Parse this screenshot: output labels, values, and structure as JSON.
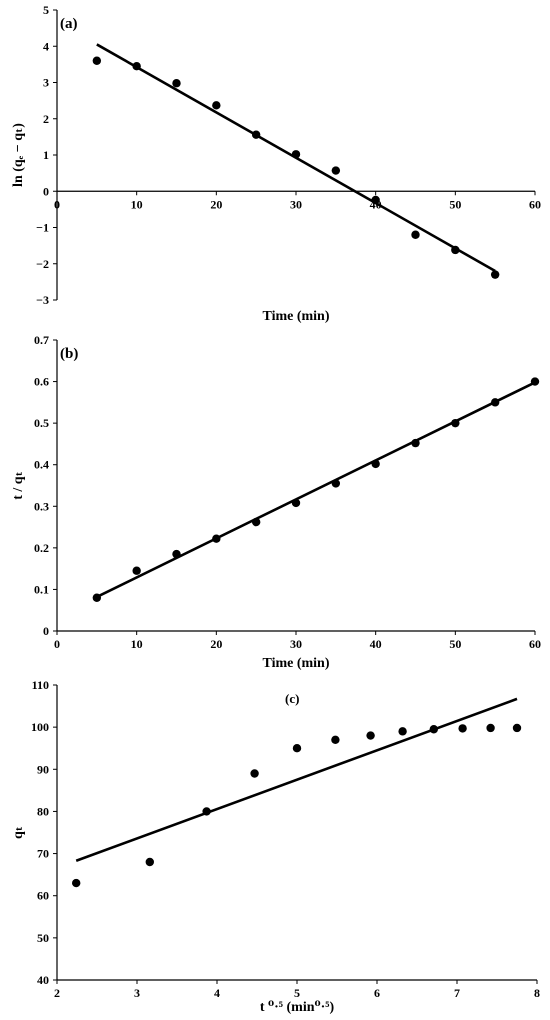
{
  "chart_data": [
    {
      "type": "scatter",
      "panel_label": "(a)",
      "xlabel": "Time  (min)",
      "ylabel": "ln (qₑ − qₜ)",
      "xlim": [
        0,
        60
      ],
      "ylim": [
        -3,
        5
      ],
      "xticks": [
        0,
        10,
        20,
        30,
        40,
        50,
        60
      ],
      "yticks": [
        -3,
        -2,
        -1,
        0,
        1,
        2,
        3,
        4,
        5
      ],
      "x_axis_at_zero": true,
      "grid": false,
      "series": [
        {
          "kind": "points",
          "x": [
            5,
            10,
            15,
            20,
            25,
            30,
            35,
            40,
            45,
            50,
            55
          ],
          "y": [
            3.6,
            3.45,
            2.98,
            2.37,
            1.56,
            1.02,
            0.57,
            -0.24,
            -1.2,
            -1.62,
            -2.3
          ]
        },
        {
          "kind": "fit-line",
          "x": [
            5,
            55
          ],
          "y": [
            4.05,
            -2.2
          ]
        }
      ]
    },
    {
      "type": "scatter",
      "panel_label": "(b)",
      "xlabel": "Time  (min)",
      "ylabel": "t / qₜ",
      "xlim": [
        0,
        60
      ],
      "ylim": [
        0,
        0.7
      ],
      "xticks": [
        0,
        10,
        20,
        30,
        40,
        50,
        60
      ],
      "yticks": [
        0,
        0.1,
        0.2,
        0.3,
        0.4,
        0.5,
        0.6,
        0.7
      ],
      "x_axis_at_zero": false,
      "grid": false,
      "series": [
        {
          "kind": "points",
          "x": [
            5,
            10,
            15,
            20,
            25,
            30,
            35,
            40,
            45,
            50,
            55,
            60
          ],
          "y": [
            0.08,
            0.145,
            0.185,
            0.222,
            0.262,
            0.308,
            0.355,
            0.402,
            0.452,
            0.5,
            0.55,
            0.6
          ]
        },
        {
          "kind": "fit-line",
          "x": [
            5,
            60
          ],
          "y": [
            0.082,
            0.598
          ]
        }
      ]
    },
    {
      "type": "scatter",
      "panel_label": "(c)",
      "xlabel": "t ⁰·⁵  (min⁰·⁵)",
      "ylabel": "qₜ",
      "xlim": [
        2,
        8
      ],
      "ylim": [
        40,
        110
      ],
      "xticks": [
        2,
        3,
        4,
        5,
        6,
        7,
        8
      ],
      "yticks": [
        40,
        50,
        60,
        70,
        80,
        90,
        100,
        110
      ],
      "x_axis_at_zero": false,
      "grid": false,
      "series": [
        {
          "kind": "points",
          "x": [
            2.24,
            3.16,
            3.87,
            4.47,
            5.0,
            5.48,
            5.92,
            6.32,
            6.71,
            7.07,
            7.42,
            7.75
          ],
          "y": [
            63,
            68,
            80,
            89,
            95,
            97,
            98,
            99,
            99.5,
            99.7,
            99.8,
            99.8
          ]
        },
        {
          "kind": "fit-line",
          "x": [
            2.24,
            7.75
          ],
          "y": [
            68.3,
            106.7
          ]
        }
      ]
    }
  ]
}
